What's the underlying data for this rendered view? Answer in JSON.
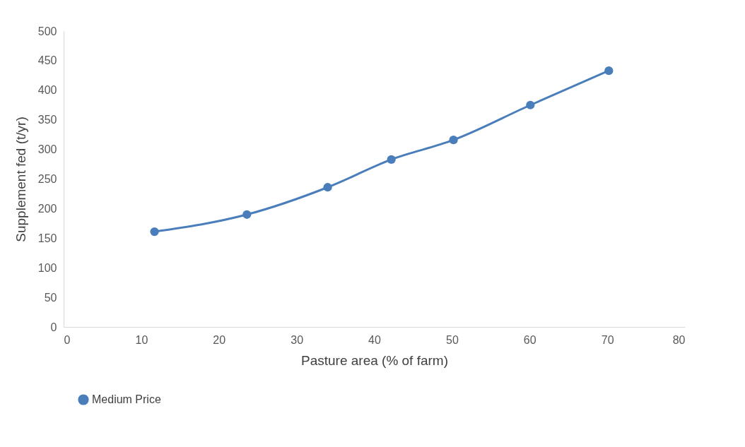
{
  "chart_data": {
    "type": "line",
    "xlabel": "Pasture area (% of farm)",
    "ylabel": "Supplement fed (t/yr)",
    "x": [
      11.7,
      23.6,
      34.0,
      42.2,
      50.2,
      60.1,
      70.2
    ],
    "series": [
      {
        "name": "Medium Price",
        "color": "#4a7ebb",
        "values": [
          161,
          190,
          236,
          283,
          316,
          375,
          433
        ]
      }
    ],
    "xlim": [
      0,
      80
    ],
    "xticks": [
      0,
      10,
      20,
      30,
      40,
      50,
      60,
      70,
      80
    ],
    "ylim": [
      0,
      500
    ],
    "yticks": [
      0,
      50,
      100,
      150,
      200,
      250,
      300,
      350,
      400,
      450,
      500
    ],
    "grid": false,
    "legend": "bottom",
    "marker": "circle",
    "line_style": "solid"
  }
}
